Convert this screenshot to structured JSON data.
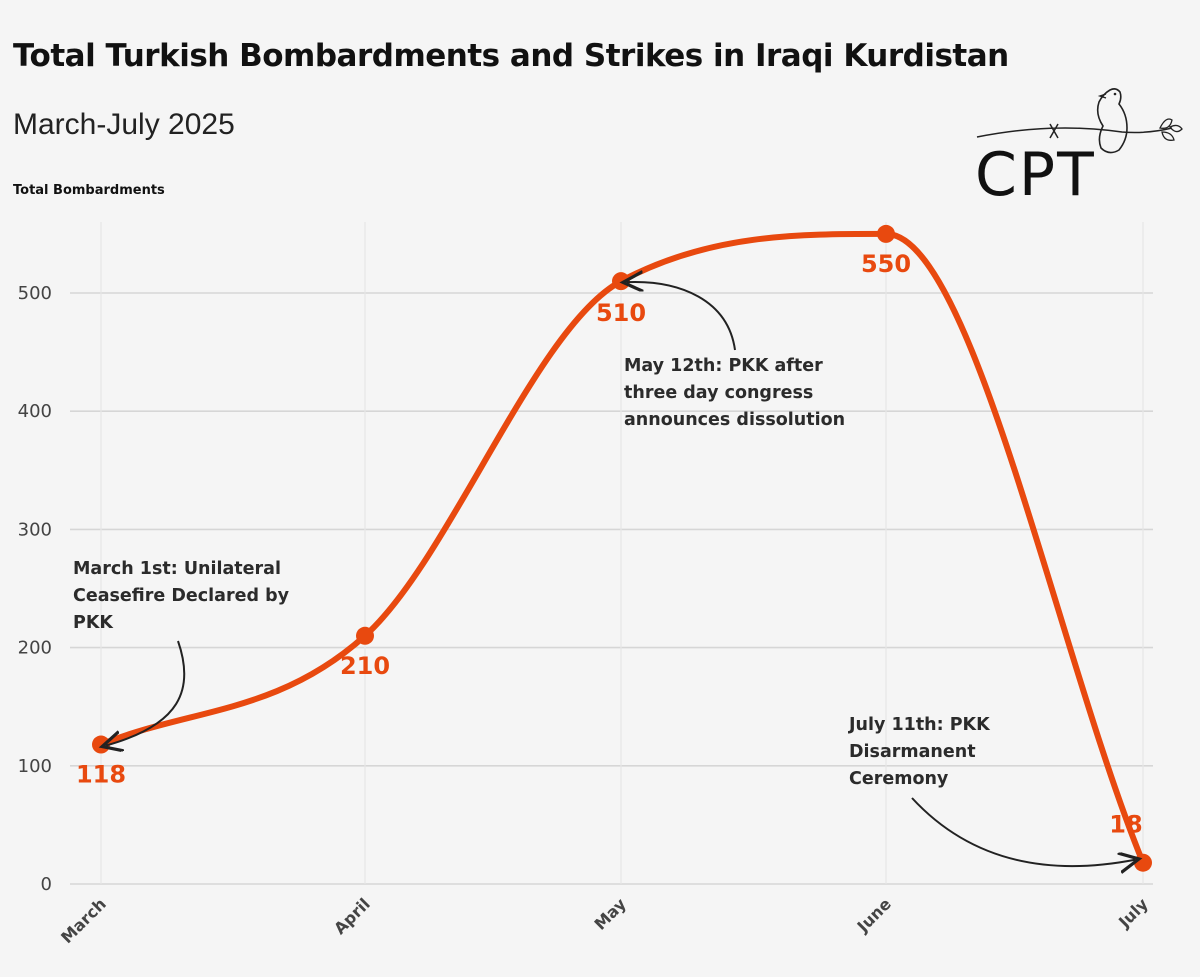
{
  "chart_data": {
    "type": "line",
    "title": "Total Turkish Bombardments and Strikes in Iraqi Kurdistan",
    "subtitle": "March-July 2025",
    "ylabel": "Total Bombardments",
    "xlabel": "",
    "categories": [
      "March",
      "April",
      "May",
      "June",
      "July"
    ],
    "values": [
      118,
      210,
      510,
      550,
      18
    ],
    "data_labels": [
      "118",
      "210",
      "510",
      "550",
      "18"
    ],
    "yticks": [
      0,
      100,
      200,
      300,
      400,
      500
    ],
    "ytick_labels": [
      "0",
      "100",
      "200",
      "300",
      "400",
      "500"
    ],
    "ylim": [
      0,
      560
    ],
    "grid": true,
    "line_color": "#e8490f",
    "annotations": [
      {
        "category": "March",
        "lines": [
          "March 1st: Unilateral",
          "Ceasefire Declared by",
          "PKK"
        ]
      },
      {
        "category": "May",
        "lines": [
          "May 12th: PKK after",
          "three day congress",
          "announces dissolution"
        ]
      },
      {
        "category": "July",
        "lines": [
          "July 11th: PKK",
          "Disarmanent",
          "Ceremony"
        ]
      }
    ]
  },
  "logo": {
    "text": "CPT",
    "icon": "dove-olive-branch-icon"
  }
}
